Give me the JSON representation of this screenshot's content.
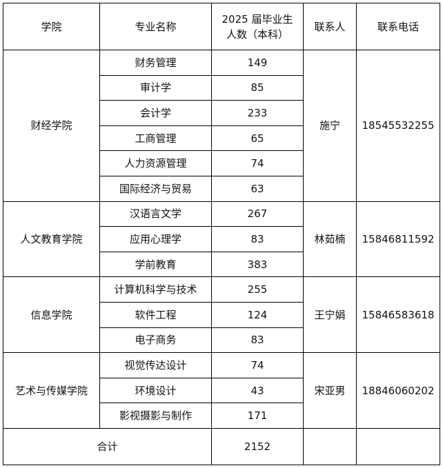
{
  "headers": [
    "学院",
    "专业名称",
    "2025届毕业生人数（本科）",
    "联系人",
    "联系电话"
  ],
  "header_count_line1": "2025 届毕业生",
  "header_count_line2": "人数（本科）",
  "colleges": [
    {
      "name": "财经学院",
      "contact": "施宁",
      "phone": "18545532255",
      "majors": [
        {
          "name": "财务管理",
          "count": "149"
        },
        {
          "name": "审计学",
          "count": "85"
        },
        {
          "name": "会计学",
          "count": "233"
        },
        {
          "name": "工商管理",
          "count": "65"
        },
        {
          "name": "人力资源管理",
          "count": "74"
        },
        {
          "name": "国际经济与贸易",
          "count": "63"
        }
      ]
    },
    {
      "name": "人文教育学院",
      "contact": "林茹楠",
      "phone": "15846811592",
      "majors": [
        {
          "name": "汉语言文学",
          "count": "267"
        },
        {
          "name": "应用心理学",
          "count": "83"
        },
        {
          "name": "学前教育",
          "count": "383"
        }
      ]
    },
    {
      "name": "信息学院",
      "contact": "王宁娟",
      "phone": "15846583618",
      "majors": [
        {
          "name": "计算机科学与技术",
          "count": "255"
        },
        {
          "name": "软件工程",
          "count": "124"
        },
        {
          "name": "电子商务",
          "count": "83"
        }
      ]
    },
    {
      "name": "艺术与传媒学院",
      "contact": "宋亚男",
      "phone": "18846060202",
      "majors": [
        {
          "name": "视觉传达设计",
          "count": "74"
        },
        {
          "name": "环境设计",
          "count": "43"
        },
        {
          "name": "影视摄影与制作",
          "count": "171"
        }
      ]
    }
  ],
  "total": {
    "label": "合计",
    "count": "2152"
  }
}
